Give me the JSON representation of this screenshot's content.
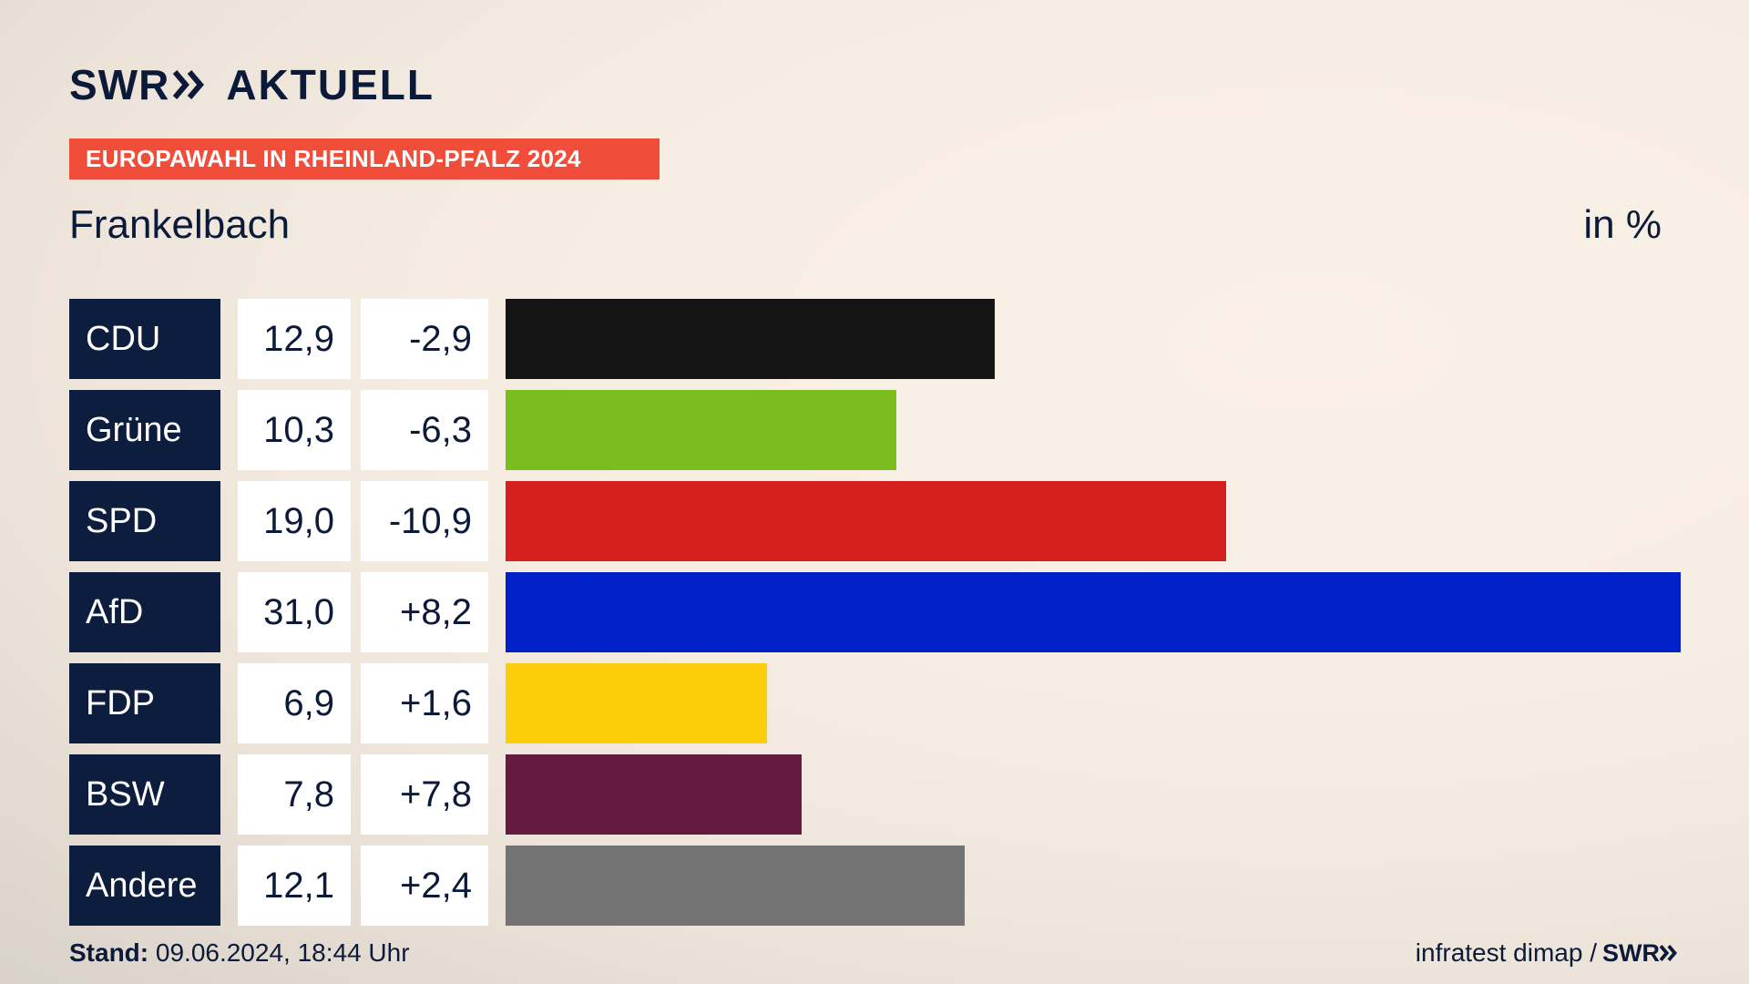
{
  "brand": {
    "logo_text": "SWR",
    "title": "AKTUELL"
  },
  "banner": {
    "text": "EUROPAWAHL IN RHEINLAND-PFALZ 2024",
    "color": "#f04e3a"
  },
  "place": "Frankelbach",
  "unit": "in %",
  "chart_data": {
    "type": "bar",
    "orientation": "horizontal",
    "categories": [
      "CDU",
      "Grüne",
      "SPD",
      "AfD",
      "FDP",
      "BSW",
      "Andere"
    ],
    "values": [
      12.9,
      10.3,
      19.0,
      31.0,
      6.9,
      7.8,
      12.1
    ],
    "value_labels": [
      "12,9",
      "10,3",
      "19,0",
      "31,0",
      "6,9",
      "7,8",
      "12,1"
    ],
    "changes": [
      -2.9,
      -6.3,
      -10.9,
      8.2,
      1.6,
      7.8,
      2.4
    ],
    "change_labels": [
      "-2,9",
      "-6,3",
      "-10,9",
      "+8,2",
      "+1,6",
      "+7,8",
      "+2,4"
    ],
    "colors": [
      "#141414",
      "#7abd1d",
      "#d61f1f",
      "#0021c9",
      "#fccd0a",
      "#651a3f",
      "#737373"
    ],
    "xlim": [
      0,
      31.0
    ],
    "grid": false
  },
  "footer": {
    "stand_label": "Stand:",
    "stand_value": " 09.06.2024, 18:44 Uhr",
    "source": "infratest dimap /",
    "source_logo": "SWR"
  }
}
